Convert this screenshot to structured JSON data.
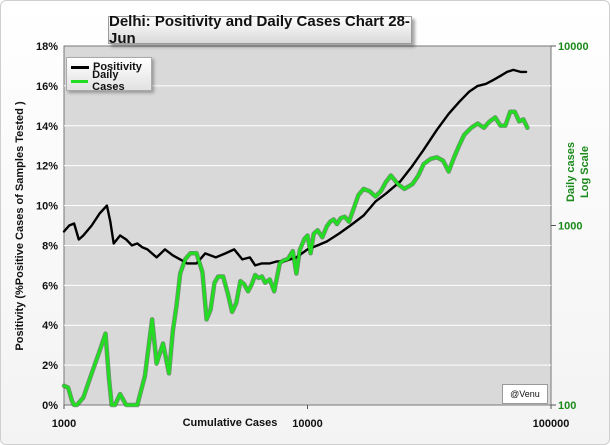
{
  "chart_data": {
    "type": "line",
    "title": "Delhi: Positivity and Daily Cases Chart 28-Jun",
    "xlabel": "Cumulative Cases",
    "x_scale": "log",
    "xlim": [
      1000,
      100000
    ],
    "x_ticks": [
      "1000",
      "10000",
      "100000"
    ],
    "ylabel": "Positivity (%Positive Cases of Samples Tested )",
    "ylim": [
      0,
      18
    ],
    "y_ticks": [
      "0%",
      "2%",
      "4%",
      "6%",
      "8%",
      "10%",
      "12%",
      "14%",
      "16%",
      "18%"
    ],
    "y2label_line1": "Daily cases",
    "y2label_line2": "Log Scale",
    "y2_scale": "log",
    "y2lim": [
      100,
      10000
    ],
    "y2_ticks": [
      "100",
      "1000",
      "10000"
    ],
    "legend": {
      "position": "top-left",
      "entries": [
        "Positivity",
        "Daily Cases"
      ]
    },
    "annotation": "@Venu",
    "series": [
      {
        "name": "Positivity",
        "axis": "left",
        "color": "#000000",
        "x": [
          1000,
          1050,
          1100,
          1150,
          1200,
          1300,
          1400,
          1500,
          1550,
          1600,
          1700,
          1800,
          1900,
          2000,
          2100,
          2200,
          2400,
          2600,
          2800,
          3000,
          3200,
          3500,
          3800,
          4200,
          4600,
          5000,
          5400,
          5800,
          6100,
          6500,
          7000,
          7500,
          8000,
          9000,
          10000,
          11000,
          12000,
          13500,
          15000,
          17000,
          19000,
          21000,
          24000,
          27000,
          30000,
          34000,
          38000,
          42000,
          46000,
          50000,
          54000,
          58000,
          62000,
          66000,
          70000,
          75000,
          79000
        ],
        "values": [
          8.7,
          9.0,
          9.1,
          8.3,
          8.5,
          9.0,
          9.6,
          10.0,
          9.2,
          8.1,
          8.5,
          8.3,
          8.0,
          8.1,
          7.9,
          7.8,
          7.4,
          7.8,
          7.5,
          7.3,
          7.1,
          7.1,
          7.6,
          7.4,
          7.6,
          7.8,
          7.3,
          7.4,
          7.0,
          7.1,
          7.1,
          7.2,
          7.2,
          7.4,
          7.8,
          8.0,
          8.2,
          8.6,
          9.0,
          9.5,
          10.2,
          10.6,
          11.2,
          12.0,
          12.8,
          13.8,
          14.6,
          15.2,
          15.7,
          16.0,
          16.1,
          16.3,
          16.5,
          16.7,
          16.8,
          16.7,
          16.7
        ]
      },
      {
        "name": "Daily Cases",
        "axis": "right",
        "color": "#22dd22",
        "x": [
          1000,
          1040,
          1080,
          1100,
          1130,
          1200,
          1300,
          1400,
          1480,
          1530,
          1570,
          1620,
          1700,
          1800,
          1900,
          2000,
          2150,
          2300,
          2400,
          2550,
          2700,
          2800,
          2900,
          3000,
          3150,
          3300,
          3500,
          3700,
          3850,
          4000,
          4150,
          4300,
          4500,
          4700,
          4900,
          5100,
          5300,
          5500,
          5700,
          5900,
          6100,
          6300,
          6500,
          6700,
          7000,
          7300,
          7700,
          8000,
          8300,
          8700,
          9000,
          9300,
          9700,
          10000,
          10300,
          10600,
          11000,
          11500,
          12000,
          12400,
          12800,
          13200,
          13700,
          14200,
          14800,
          15500,
          16200,
          17000,
          18000,
          19000,
          20000,
          21000,
          22000,
          23500,
          25000,
          27000,
          28500,
          30000,
          32000,
          34000,
          36000,
          38000,
          40000,
          42000,
          44000,
          47000,
          50000,
          53000,
          56000,
          59000,
          62000,
          65000,
          68000,
          71000,
          74000,
          77000,
          80000
        ],
        "values": [
          128,
          125,
          105,
          92,
          85,
          110,
          150,
          200,
          250,
          140,
          95,
          88,
          115,
          98,
          80,
          100,
          145,
          300,
          170,
          220,
          150,
          260,
          360,
          540,
          650,
          700,
          700,
          550,
          300,
          340,
          480,
          520,
          520,
          420,
          330,
          370,
          490,
          470,
          430,
          470,
          530,
          510,
          520,
          480,
          500,
          430,
          620,
          640,
          650,
          720,
          540,
          730,
          840,
          880,
          700,
          900,
          940,
          860,
          990,
          1050,
          1080,
          1020,
          1100,
          1120,
          1050,
          1250,
          1480,
          1600,
          1550,
          1450,
          1550,
          1750,
          1900,
          1700,
          1600,
          1700,
          1900,
          2200,
          2350,
          2400,
          2300,
          2000,
          2400,
          2800,
          3200,
          3500,
          3700,
          3500,
          3800,
          4000,
          3600,
          3600,
          4300,
          4300,
          3800,
          3900,
          3500
        ]
      }
    ]
  },
  "watermark": "@Venu",
  "colors": {
    "plot_background": "#d9d9d9",
    "positivity_line": "#000000",
    "daily_cases_line": "#22dd22",
    "daily_cases_axis": "#1b8a1b"
  }
}
